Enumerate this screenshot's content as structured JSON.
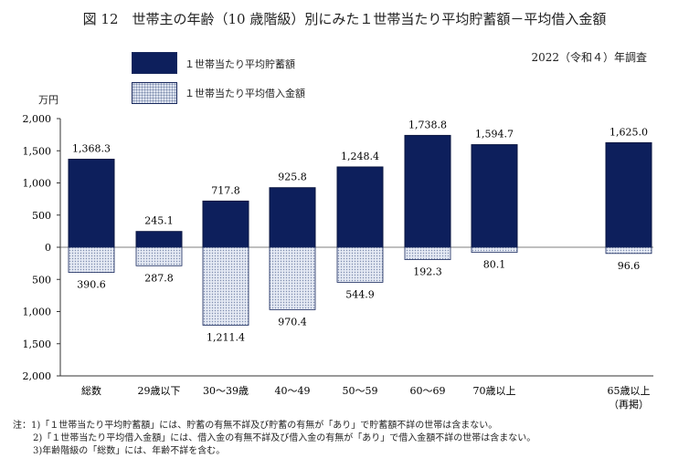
{
  "chart_data": {
    "type": "bar",
    "title": "図 12　世帯主の年齢（10 歳階級）別にみた１世帯当たり平均貯蓄額－平均借入金額",
    "subtitle": "2022（令和４）年調査",
    "ylabel": "万円",
    "ylim": [
      -2000,
      2000
    ],
    "yticks": [
      2000,
      1500,
      1000,
      500,
      0,
      -500,
      -1000,
      -1500,
      -2000
    ],
    "ytick_labels": [
      "2,000",
      "1,500",
      "1,000",
      "500",
      "0",
      "500",
      "1,000",
      "1,500",
      "2,000"
    ],
    "categories": [
      "総数",
      "29歳以下",
      "30～39歳",
      "40～49",
      "50～59",
      "60～69",
      "70歳以上",
      "65歳以上"
    ],
    "category_sublabels": [
      "",
      "",
      "",
      "",
      "",
      "",
      "",
      "（再掲）"
    ],
    "legend_placement": "top-left",
    "series": [
      {
        "name": "１世帯当たり平均貯蓄額",
        "color": "#0d1f5c",
        "fill": "solid",
        "values": [
          1368.3,
          245.1,
          717.8,
          925.8,
          1248.4,
          1738.8,
          1594.7,
          1625.0
        ],
        "labels": [
          "1,368.3",
          "245.1",
          "717.8",
          "925.8",
          "1,248.4",
          "1,738.8",
          "1,594.7",
          "1,625.0"
        ]
      },
      {
        "name": "１世帯当たり平均借入金額",
        "color": "#c9d3e6",
        "fill": "dotted",
        "values": [
          390.6,
          287.8,
          1211.4,
          970.4,
          544.9,
          192.3,
          80.1,
          96.6
        ],
        "labels": [
          "390.6",
          "287.8",
          "1,211.4",
          "970.4",
          "544.9",
          "192.3",
          "80.1",
          "96.6"
        ]
      }
    ]
  },
  "notes": [
    "注：1)「１世帯当たり平均貯蓄額」には、貯蓄の有無不詳及び貯蓄の有無が「あり」で貯蓄額不詳の世帯は含まない。",
    "2)「１世帯当たり平均借入金額」には、借入金の有無不詳及び借入金の有無が「あり」で借入金額不詳の世帯は含まない。",
    "3)年齢階級の「総数」には、年齢不詳を含む。"
  ]
}
